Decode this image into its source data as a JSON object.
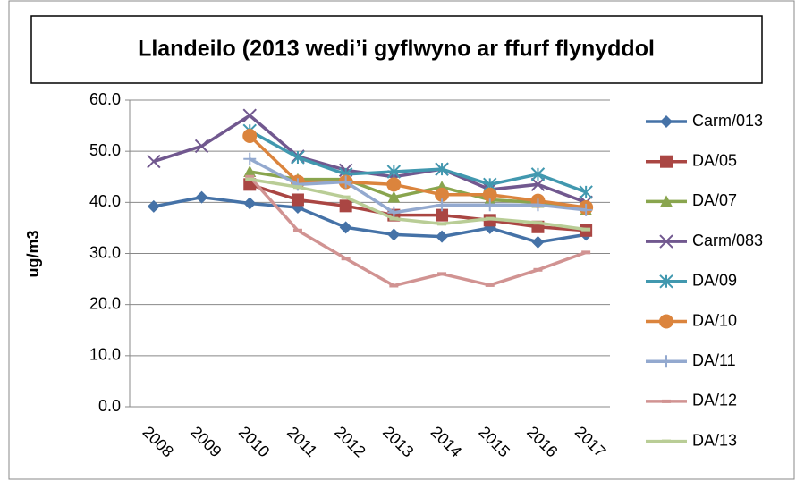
{
  "chart_data": {
    "type": "line",
    "title": "Llandeilo (2013 wedi’i gyflwyno ar ffurf flynyddol",
    "ylabel": "ug/m3",
    "categories": [
      "2008",
      "2009",
      "2010",
      "2011",
      "2012",
      "2013",
      "2014",
      "2015",
      "2016",
      "2017"
    ],
    "ylim": [
      0,
      60
    ],
    "yticks": [
      {
        "value": 0,
        "label": "0.0"
      },
      {
        "value": 10,
        "label": "10.0"
      },
      {
        "value": 20,
        "label": "20.0"
      },
      {
        "value": 30,
        "label": "30.0"
      },
      {
        "value": 40,
        "label": "40.0"
      },
      {
        "value": 50,
        "label": "50.0"
      },
      {
        "value": 60,
        "label": "60.0"
      }
    ],
    "grid": true,
    "legend": "right",
    "series": [
      {
        "name": "Carm/013",
        "color": "#4572a7",
        "marker": "diamond",
        "values": [
          39.2,
          41,
          39.8,
          39,
          35.1,
          33.7,
          33.3,
          35,
          32.2,
          33.7
        ]
      },
      {
        "name": "DA/05",
        "color": "#aa4643",
        "marker": "square",
        "values": [
          null,
          null,
          43.5,
          40.5,
          39.3,
          37.5,
          37.5,
          36.5,
          35.2,
          34.5
        ]
      },
      {
        "name": "DA/07",
        "color": "#89a54e",
        "marker": "triangle",
        "values": [
          null,
          null,
          46,
          44.5,
          44.5,
          41,
          43,
          40.5,
          40,
          38.5
        ]
      },
      {
        "name": "Carm/083",
        "color": "#71588f",
        "marker": "x",
        "values": [
          48,
          51,
          57,
          49,
          46.3,
          45,
          46.5,
          42.5,
          43.5,
          40
        ]
      },
      {
        "name": "DA/09",
        "color": "#4198af",
        "marker": "star",
        "values": [
          null,
          null,
          54,
          48.8,
          45.5,
          46,
          46.5,
          43.5,
          45.5,
          42
        ]
      },
      {
        "name": "DA/10",
        "color": "#db843d",
        "marker": "circle",
        "values": [
          null,
          null,
          53,
          44,
          44,
          43.5,
          41.5,
          41.5,
          40.3,
          39
        ]
      },
      {
        "name": "DA/11",
        "color": "#93a9cf",
        "marker": "plus",
        "values": [
          null,
          null,
          48.5,
          43.5,
          44,
          38,
          39.5,
          39.5,
          39.5,
          38.5
        ]
      },
      {
        "name": "DA/12",
        "color": "#d19392",
        "marker": "dash",
        "values": [
          null,
          null,
          45,
          34.5,
          29,
          23.7,
          26,
          23.8,
          26.8,
          30.2
        ]
      },
      {
        "name": "DA/13",
        "color": "#b9cd96",
        "marker": "dash",
        "values": [
          null,
          null,
          44.5,
          43,
          41,
          36.8,
          35.8,
          36.8,
          36,
          34.7
        ]
      }
    ]
  }
}
